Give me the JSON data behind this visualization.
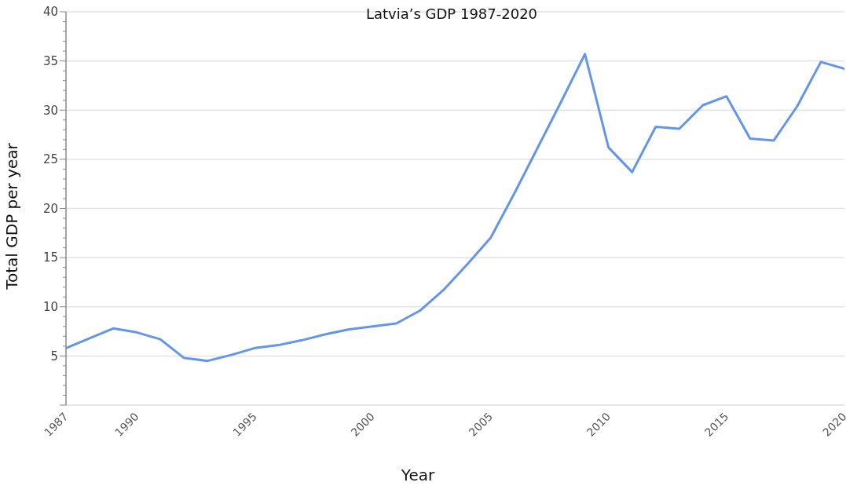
{
  "chart_data": {
    "type": "line",
    "title": "Latvia’s GDP 1987-2020",
    "xlabel": "Year",
    "ylabel": "Total GDP per year",
    "x": [
      1987,
      1989,
      1990,
      1991,
      1992,
      1993,
      1994,
      1995,
      1996,
      1997,
      1998,
      1999,
      2000,
      2001,
      2002,
      2003,
      2004,
      2005,
      2006,
      2008,
      2009,
      2010,
      2011,
      2012,
      2013,
      2014,
      2015,
      2016,
      2017,
      2018,
      2019,
      2020
    ],
    "series": [
      {
        "color": "#6495ed",
        "values": [
          5.8,
          7.8,
          7.4,
          6.7,
          4.8,
          4.5,
          5.1,
          5.8,
          6.1,
          6.6,
          7.2,
          7.7,
          8.0,
          8.3,
          9.6,
          11.7,
          14.3,
          17.0,
          21.5,
          30.9,
          35.7,
          26.2,
          23.7,
          28.3,
          28.1,
          30.5,
          31.4,
          27.1,
          26.9,
          30.4,
          34.9,
          34.2
        ]
      }
    ],
    "xlim": [
      1987,
      2020
    ],
    "xticks": [
      1987,
      1990,
      1995,
      2000,
      2005,
      2010,
      2015,
      2020
    ],
    "ylim": [
      0,
      40
    ],
    "yticks": [
      5,
      10,
      15,
      20,
      25,
      30,
      35,
      40
    ],
    "grid": "y",
    "marker": "none",
    "line_style": "solid"
  }
}
